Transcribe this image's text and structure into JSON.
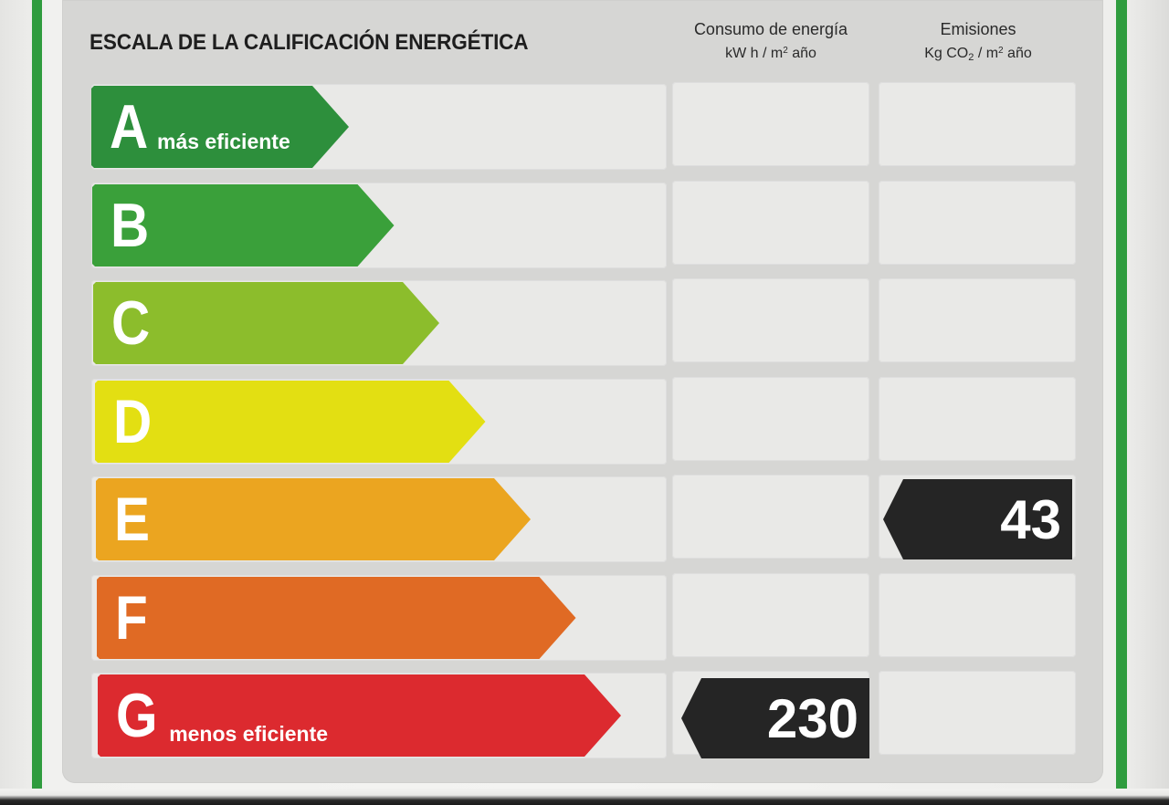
{
  "label": {
    "title": "ESCALA DE LA CALIFICACIÓN ENERGÉTICA",
    "energy_header": {
      "line1": "Consumo de energía",
      "unit_prefix": "kW h / m",
      "unit_sup": "2",
      "unit_suffix": " año"
    },
    "emissions_header": {
      "line1": "Emisiones",
      "unit_prefix": "Kg CO",
      "unit_sub": "2",
      "unit_mid": " / m",
      "unit_sup": "2",
      "unit_suffix": " año"
    },
    "bands": [
      {
        "letter": "A",
        "caption": "más eficiente",
        "color": "#2d8f3c"
      },
      {
        "letter": "B",
        "caption": "",
        "color": "#3aa03a"
      },
      {
        "letter": "C",
        "caption": "",
        "color": "#8cbd2c"
      },
      {
        "letter": "D",
        "caption": "",
        "color": "#e3df12"
      },
      {
        "letter": "E",
        "caption": "",
        "color": "#eba520"
      },
      {
        "letter": "F",
        "caption": "",
        "color": "#e06a24"
      },
      {
        "letter": "G",
        "caption": "menos eficiente",
        "color": "#dc2a2f"
      }
    ],
    "energy_rating": {
      "band": "G",
      "value": "230"
    },
    "emissions_rating": {
      "band": "E",
      "value": "43"
    },
    "marker_color": "#252525"
  }
}
